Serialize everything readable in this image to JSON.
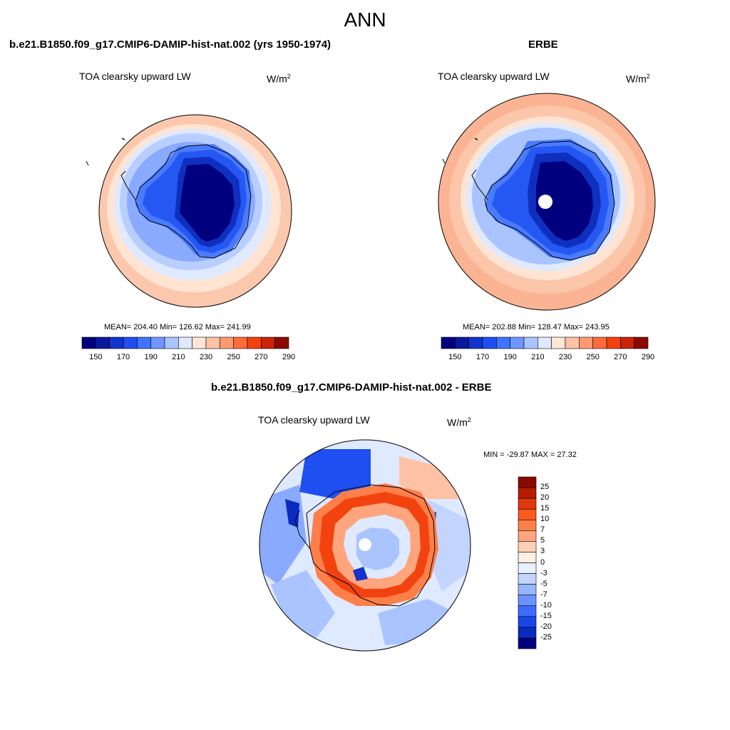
{
  "main_title": "ANN",
  "panel1": {
    "title": "b.e21.B1850.f09_g17.CMIP6-DAMIP-hist-nat.002 (yrs 1950-1974)",
    "variable": "TOA clearsky upward LW",
    "units_base": "W/m",
    "units_exp": "2",
    "stats": "MEAN= 204.40  Min= 126.62  Max= 241.99"
  },
  "panel2": {
    "title": "ERBE",
    "variable": "TOA clearsky upward LW",
    "units_base": "W/m",
    "units_exp": "2",
    "stats": "MEAN= 202.88  Min= 128.47  Max= 243.95"
  },
  "panel3": {
    "title": "b.e21.B1850.f09_g17.CMIP6-DAMIP-hist-nat.002 - ERBE",
    "variable": "TOA clearsky upward LW",
    "units_base": "W/m",
    "units_exp": "2",
    "minmax": "MIN = -29.87 MAX =  27.32"
  },
  "colorbar_abs": {
    "colors": [
      "#00007f",
      "#0a1a9f",
      "#1233cc",
      "#1f4ff0",
      "#3f74ff",
      "#7096ff",
      "#a9c4ff",
      "#dfe9ff",
      "#ffe6d6",
      "#ffc2a4",
      "#ff9a70",
      "#ff6b3a",
      "#f2420f",
      "#c8240a",
      "#8b0a00"
    ],
    "labels": [
      "150",
      "170",
      "190",
      "210",
      "230",
      "250",
      "270",
      "290"
    ]
  },
  "colorbar_diff": {
    "colors": [
      "#8b0a00",
      "#b71c00",
      "#e0380a",
      "#ff5a1f",
      "#ff7f4a",
      "#ffa57e",
      "#ffcfb5",
      "#ffeee4",
      "#e9f0ff",
      "#c3d5ff",
      "#96b6ff",
      "#6a93ff",
      "#3d6bff",
      "#1a45e8",
      "#0a2bbf",
      "#00007f"
    ],
    "labels": [
      "25",
      "20",
      "15",
      "10",
      "7",
      "5",
      "3",
      "0",
      "-3",
      "-5",
      "-7",
      "-10",
      "-15",
      "-20",
      "-25"
    ]
  }
}
